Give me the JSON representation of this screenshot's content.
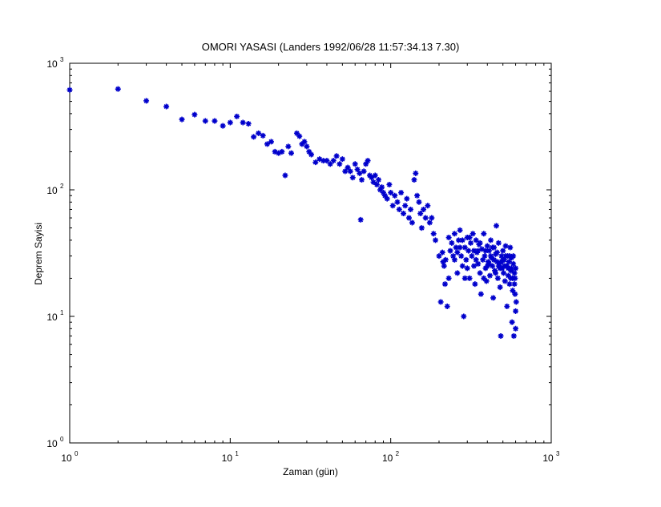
{
  "chart_data": {
    "type": "scatter",
    "title": "OMORI YASASI (Landers 1992/06/28 11:57:34.13 7.30)",
    "xlabel": "Zaman (gün)",
    "ylabel": "Deprem Sayisi",
    "xscale": "log",
    "yscale": "log",
    "xlim": [
      1,
      1000
    ],
    "ylim": [
      1,
      1000
    ],
    "grid": false,
    "legend": null,
    "marker": "*",
    "color": "#0000cc",
    "x_ticks": [
      {
        "base": "10",
        "exp": "0"
      },
      {
        "base": "10",
        "exp": "1"
      },
      {
        "base": "10",
        "exp": "2"
      },
      {
        "base": "10",
        "exp": "3"
      }
    ],
    "y_ticks": [
      {
        "base": "10",
        "exp": "0"
      },
      {
        "base": "10",
        "exp": "1"
      },
      {
        "base": "10",
        "exp": "2"
      },
      {
        "base": "10",
        "exp": "3"
      }
    ],
    "points": [
      [
        1,
        616
      ],
      [
        2,
        626
      ],
      [
        3,
        505
      ],
      [
        4,
        455
      ],
      [
        5,
        360
      ],
      [
        6,
        393
      ],
      [
        7,
        350
      ],
      [
        8,
        350
      ],
      [
        9,
        320
      ],
      [
        10,
        340
      ],
      [
        11,
        380
      ],
      [
        12,
        340
      ],
      [
        13,
        333
      ],
      [
        14,
        262
      ],
      [
        15,
        280
      ],
      [
        16,
        268
      ],
      [
        17,
        230
      ],
      [
        18,
        240
      ],
      [
        19,
        200
      ],
      [
        20,
        195
      ],
      [
        21,
        200
      ],
      [
        22,
        130
      ],
      [
        23,
        220
      ],
      [
        24,
        195
      ],
      [
        26,
        280
      ],
      [
        27,
        265
      ],
      [
        28,
        230
      ],
      [
        29,
        240
      ],
      [
        30,
        220
      ],
      [
        31,
        200
      ],
      [
        32,
        190
      ],
      [
        34,
        165
      ],
      [
        36,
        175
      ],
      [
        38,
        170
      ],
      [
        40,
        170
      ],
      [
        42,
        160
      ],
      [
        44,
        170
      ],
      [
        46,
        185
      ],
      [
        48,
        160
      ],
      [
        50,
        175
      ],
      [
        52,
        140
      ],
      [
        54,
        150
      ],
      [
        56,
        140
      ],
      [
        58,
        125
      ],
      [
        60,
        160
      ],
      [
        62,
        145
      ],
      [
        64,
        135
      ],
      [
        65,
        58
      ],
      [
        66,
        120
      ],
      [
        68,
        140
      ],
      [
        70,
        160
      ],
      [
        72,
        170
      ],
      [
        74,
        130
      ],
      [
        76,
        125
      ],
      [
        78,
        115
      ],
      [
        80,
        130
      ],
      [
        82,
        110
      ],
      [
        84,
        120
      ],
      [
        86,
        100
      ],
      [
        88,
        105
      ],
      [
        90,
        95
      ],
      [
        92,
        90
      ],
      [
        95,
        85
      ],
      [
        98,
        110
      ],
      [
        100,
        95
      ],
      [
        103,
        75
      ],
      [
        106,
        90
      ],
      [
        110,
        80
      ],
      [
        113,
        70
      ],
      [
        116,
        95
      ],
      [
        120,
        65
      ],
      [
        123,
        75
      ],
      [
        126,
        85
      ],
      [
        130,
        60
      ],
      [
        133,
        70
      ],
      [
        136,
        55
      ],
      [
        140,
        120
      ],
      [
        143,
        135
      ],
      [
        146,
        90
      ],
      [
        150,
        80
      ],
      [
        153,
        65
      ],
      [
        156,
        50
      ],
      [
        160,
        70
      ],
      [
        165,
        60
      ],
      [
        170,
        75
      ],
      [
        175,
        55
      ],
      [
        180,
        60
      ],
      [
        185,
        45
      ],
      [
        190,
        40
      ],
      [
        200,
        30
      ],
      [
        205,
        13
      ],
      [
        210,
        32
      ],
      [
        215,
        25
      ],
      [
        220,
        28
      ],
      [
        225,
        12
      ],
      [
        230,
        20
      ],
      [
        240,
        38
      ],
      [
        245,
        30
      ],
      [
        250,
        45
      ],
      [
        255,
        35
      ],
      [
        260,
        22
      ],
      [
        265,
        40
      ],
      [
        270,
        48
      ],
      [
        275,
        30
      ],
      [
        280,
        25
      ],
      [
        285,
        10
      ],
      [
        290,
        35
      ],
      [
        295,
        28
      ],
      [
        300,
        42
      ],
      [
        305,
        33
      ],
      [
        310,
        20
      ],
      [
        315,
        38
      ],
      [
        320,
        30
      ],
      [
        325,
        45
      ],
      [
        330,
        25
      ],
      [
        335,
        18
      ],
      [
        340,
        40
      ],
      [
        345,
        32
      ],
      [
        350,
        26
      ],
      [
        355,
        37
      ],
      [
        360,
        22
      ],
      [
        365,
        15
      ],
      [
        370,
        34
      ],
      [
        375,
        28
      ],
      [
        380,
        45
      ],
      [
        385,
        30
      ],
      [
        390,
        24
      ],
      [
        395,
        19
      ],
      [
        400,
        36
      ],
      [
        405,
        27
      ],
      [
        410,
        33
      ],
      [
        415,
        21
      ],
      [
        420,
        40
      ],
      [
        425,
        29
      ],
      [
        430,
        25
      ],
      [
        435,
        14
      ],
      [
        440,
        35
      ],
      [
        445,
        23
      ],
      [
        450,
        31
      ],
      [
        455,
        52
      ],
      [
        460,
        27
      ],
      [
        465,
        20
      ],
      [
        470,
        38
      ],
      [
        475,
        26
      ],
      [
        480,
        17
      ],
      [
        485,
        7
      ],
      [
        490,
        30
      ],
      [
        495,
        24
      ],
      [
        500,
        33
      ],
      [
        505,
        22
      ],
      [
        510,
        28
      ],
      [
        515,
        19
      ],
      [
        520,
        36
      ],
      [
        525,
        25
      ],
      [
        530,
        12
      ],
      [
        535,
        30
      ],
      [
        540,
        21
      ],
      [
        545,
        27
      ],
      [
        550,
        18
      ],
      [
        555,
        35
      ],
      [
        560,
        23
      ],
      [
        565,
        29
      ],
      [
        570,
        9
      ],
      [
        575,
        20
      ],
      [
        580,
        26
      ],
      [
        585,
        7
      ],
      [
        590,
        22
      ],
      [
        595,
        15
      ],
      [
        600,
        11
      ],
      [
        230,
        42
      ],
      [
        250,
        28
      ],
      [
        270,
        35
      ],
      [
        310,
        42
      ],
      [
        340,
        28
      ],
      [
        360,
        38
      ],
      [
        390,
        33
      ],
      [
        420,
        30
      ],
      [
        440,
        28
      ],
      [
        470,
        25
      ],
      [
        500,
        28
      ],
      [
        520,
        30
      ],
      [
        540,
        24
      ],
      [
        560,
        20
      ],
      [
        580,
        30
      ],
      [
        590,
        18
      ],
      [
        600,
        24
      ],
      [
        260,
        32
      ],
      [
        290,
        20
      ],
      [
        330,
        33
      ],
      [
        380,
        20
      ],
      [
        410,
        26
      ],
      [
        450,
        22
      ],
      [
        480,
        24
      ],
      [
        510,
        25
      ],
      [
        550,
        30
      ],
      [
        575,
        16
      ],
      [
        595,
        20
      ],
      [
        605,
        13
      ],
      [
        600,
        8
      ],
      [
        212,
        27
      ],
      [
        218,
        18
      ],
      [
        235,
        33
      ],
      [
        280,
        40
      ],
      [
        300,
        24
      ],
      [
        350,
        33
      ],
      [
        400,
        25
      ],
      [
        430,
        35
      ],
      [
        460,
        32
      ],
      [
        490,
        27
      ],
      [
        530,
        25
      ],
      [
        565,
        24
      ]
    ]
  }
}
